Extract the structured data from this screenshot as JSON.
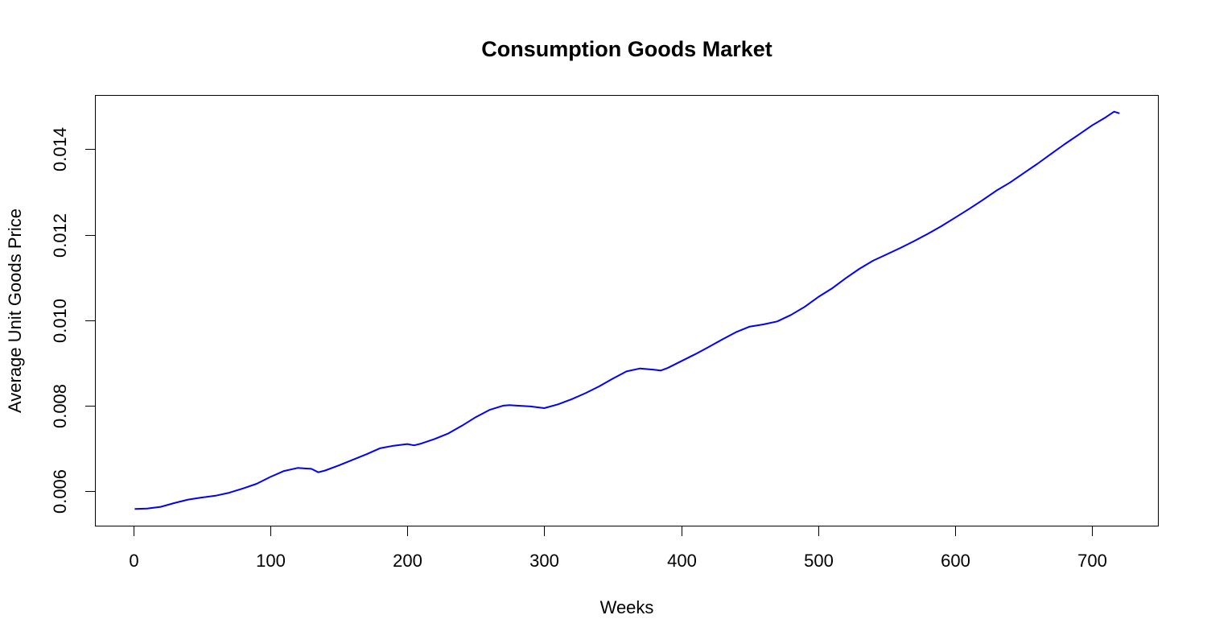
{
  "chart_data": {
    "type": "line",
    "title": "Consumption Goods Market",
    "xlabel": "Weeks",
    "ylabel": "Average Unit Goods Price",
    "xlim": [
      -28,
      748
    ],
    "ylim": [
      0.00519,
      0.01527
    ],
    "x_ticks": [
      0,
      100,
      200,
      300,
      400,
      500,
      600,
      700
    ],
    "x_tick_labels": [
      "0",
      "100",
      "200",
      "300",
      "400",
      "500",
      "600",
      "700"
    ],
    "y_ticks": [
      0.006,
      0.008,
      0.01,
      0.012,
      0.014
    ],
    "y_tick_labels": [
      "0.006",
      "0.008",
      "0.010",
      "0.012",
      "0.014"
    ],
    "grid": false,
    "series": [
      {
        "color": "#0000ff",
        "x": [
          1,
          10,
          20,
          30,
          40,
          50,
          60,
          70,
          80,
          90,
          100,
          110,
          120,
          130,
          135,
          140,
          150,
          160,
          170,
          180,
          190,
          200,
          205,
          210,
          220,
          230,
          240,
          250,
          260,
          270,
          275,
          280,
          290,
          300,
          310,
          320,
          330,
          340,
          350,
          360,
          370,
          380,
          385,
          390,
          400,
          410,
          420,
          430,
          440,
          450,
          460,
          470,
          480,
          490,
          500,
          510,
          520,
          530,
          540,
          550,
          560,
          570,
          580,
          590,
          600,
          610,
          620,
          630,
          640,
          650,
          660,
          670,
          680,
          690,
          700,
          710,
          716,
          720
        ],
        "y": [
          0.00558,
          0.00559,
          0.00563,
          0.00572,
          0.0058,
          0.00585,
          0.00589,
          0.00596,
          0.00606,
          0.00617,
          0.00633,
          0.00647,
          0.00654,
          0.00652,
          0.00644,
          0.00648,
          0.0066,
          0.00673,
          0.00686,
          0.007,
          0.00706,
          0.0071,
          0.00707,
          0.00711,
          0.00722,
          0.00735,
          0.00753,
          0.00773,
          0.0079,
          0.008,
          0.00801,
          0.008,
          0.00798,
          0.00794,
          0.00803,
          0.00815,
          0.00829,
          0.00845,
          0.00863,
          0.0088,
          0.00887,
          0.00884,
          0.00882,
          0.00888,
          0.00904,
          0.0092,
          0.00937,
          0.00955,
          0.00972,
          0.00985,
          0.0099,
          0.00997,
          0.01012,
          0.01031,
          0.01054,
          0.01074,
          0.01098,
          0.0112,
          0.01139,
          0.01154,
          0.01169,
          0.01185,
          0.01202,
          0.0122,
          0.0124,
          0.0126,
          0.01281,
          0.01303,
          0.01322,
          0.01344,
          0.01366,
          0.01389,
          0.01412,
          0.01434,
          0.01456,
          0.01475,
          0.01488,
          0.01484
        ]
      }
    ]
  }
}
